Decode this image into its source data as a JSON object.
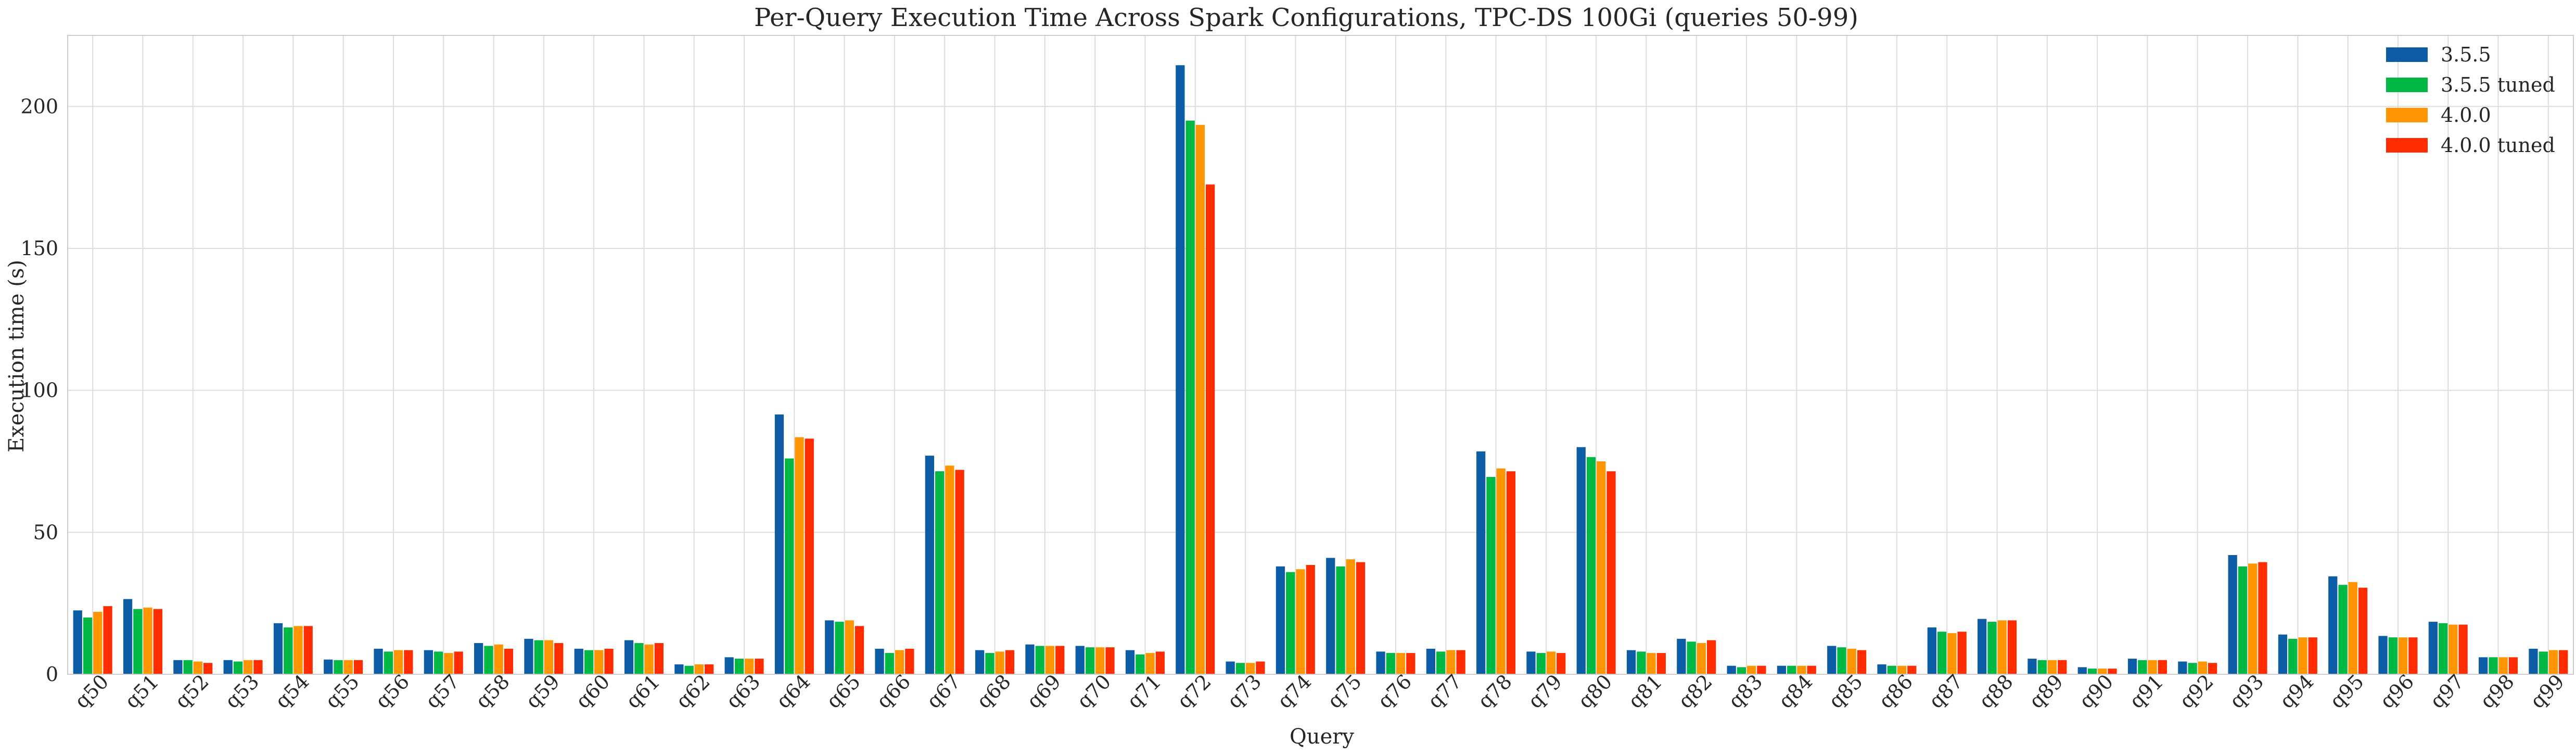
{
  "chart_data": {
    "type": "bar",
    "title": "Per-Query Execution Time Across Spark Configurations, TPC-DS 100Gi (queries 50-99)",
    "xlabel": "Query",
    "ylabel": "Execution time (s)",
    "ylim": [
      0,
      225
    ],
    "yticks": [
      "0",
      "50",
      "100",
      "150",
      "200"
    ],
    "grid": true,
    "legend_position": "top-right",
    "categories": [
      "q50",
      "q51",
      "q52",
      "q53",
      "q54",
      "q55",
      "q56",
      "q57",
      "q58",
      "q59",
      "q60",
      "q61",
      "q62",
      "q63",
      "q64",
      "q65",
      "q66",
      "q67",
      "q68",
      "q69",
      "q70",
      "q71",
      "q72",
      "q73",
      "q74",
      "q75",
      "q76",
      "q77",
      "q78",
      "q79",
      "q80",
      "q81",
      "q82",
      "q83",
      "q84",
      "q85",
      "q86",
      "q87",
      "q88",
      "q89",
      "q90",
      "q91",
      "q92",
      "q93",
      "q94",
      "q95",
      "q96",
      "q97",
      "q98",
      "q99"
    ],
    "series": [
      {
        "name": "3.5.5",
        "color": "#0c5da5",
        "values": [
          22.5,
          26.5,
          5,
          5,
          18,
          5.2,
          9,
          8.5,
          11,
          12.5,
          9,
          12,
          3.5,
          6,
          91.5,
          19,
          9,
          77,
          8.5,
          10.5,
          10,
          8.5,
          214.5,
          4.5,
          38,
          41,
          8,
          9,
          78.5,
          8,
          80,
          8.5,
          12.5,
          3,
          3,
          10,
          3.5,
          16.5,
          19.5,
          5.5,
          2.5,
          5.5,
          4.5,
          42,
          14,
          34.5,
          13.5,
          18.5,
          6,
          9
        ]
      },
      {
        "name": "3.5.5 tuned",
        "color": "#00b945",
        "values": [
          20,
          23,
          5,
          4.5,
          16.5,
          5,
          8,
          8,
          10,
          12,
          8.5,
          11,
          3,
          5.5,
          76,
          18.5,
          7.5,
          71.5,
          7.5,
          10,
          9.5,
          7,
          195,
          4,
          36,
          38,
          7.5,
          8,
          69.5,
          7.5,
          76.5,
          8,
          11.5,
          2.5,
          3,
          9.5,
          3,
          15,
          18.5,
          5,
          2,
          5,
          4,
          38,
          12.5,
          31.5,
          13,
          18,
          6,
          8
        ]
      },
      {
        "name": "4.0.0",
        "color": "#ff9500",
        "values": [
          22,
          23.5,
          4.5,
          5,
          17,
          5,
          8.5,
          7.5,
          10.5,
          12,
          8.5,
          10.5,
          3.5,
          5.5,
          83.5,
          19,
          8.5,
          73.5,
          8,
          10,
          9.5,
          7.5,
          193.5,
          4,
          37,
          40.5,
          7.5,
          8.5,
          72.5,
          8,
          75,
          7.5,
          11,
          3,
          3,
          9,
          3,
          14.5,
          19,
          5,
          2,
          5,
          4.5,
          39,
          13,
          32.5,
          13,
          17.5,
          6,
          8.5
        ]
      },
      {
        "name": "4.0.0 tuned",
        "color": "#ff2c00",
        "values": [
          24,
          23,
          4,
          5,
          17,
          5,
          8.5,
          8,
          9,
          11,
          9,
          11,
          3.5,
          5.5,
          83,
          17,
          9,
          72,
          8.5,
          10,
          9.5,
          8,
          172.5,
          4.5,
          38.5,
          39.5,
          7.5,
          8.5,
          71.5,
          7.5,
          71.5,
          7.5,
          12,
          3,
          3,
          8.5,
          3,
          15,
          19,
          5,
          2,
          5,
          4,
          39.5,
          13,
          30.5,
          13,
          17.5,
          6,
          8.5
        ]
      }
    ]
  }
}
